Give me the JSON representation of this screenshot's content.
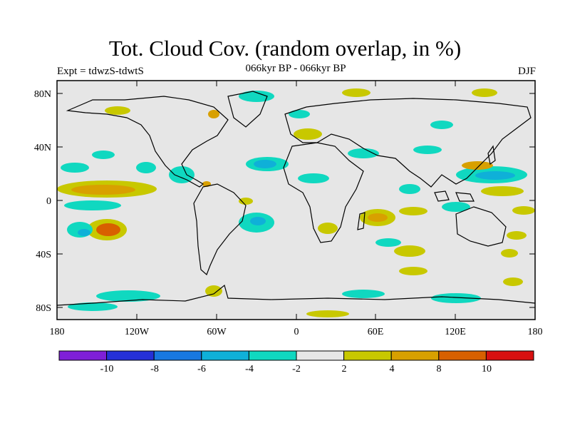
{
  "title": "Tot. Cloud Cov. (random overlap, in %)",
  "subtitle_left": "Expt = tdwzS-tdwtS",
  "subtitle_center": "066kyr BP - 066kyr BP",
  "subtitle_right": "DJF",
  "map": {
    "lat_labels": [
      "80N",
      "40N",
      "0",
      "40S",
      "80S"
    ],
    "lon_labels": [
      "180",
      "120W",
      "60W",
      "0",
      "60E",
      "120E",
      "180"
    ]
  },
  "colorbar": {
    "colors": [
      "#7f1fd8",
      "#2530d8",
      "#1878e0",
      "#0fb0d8",
      "#10d8c0",
      "#e6e6e6",
      "#c8c800",
      "#d8a000",
      "#d86000",
      "#d81010"
    ],
    "labels": [
      "-10",
      "-8",
      "-6",
      "-4",
      "-2",
      "2",
      "4",
      "8",
      "10"
    ]
  }
}
